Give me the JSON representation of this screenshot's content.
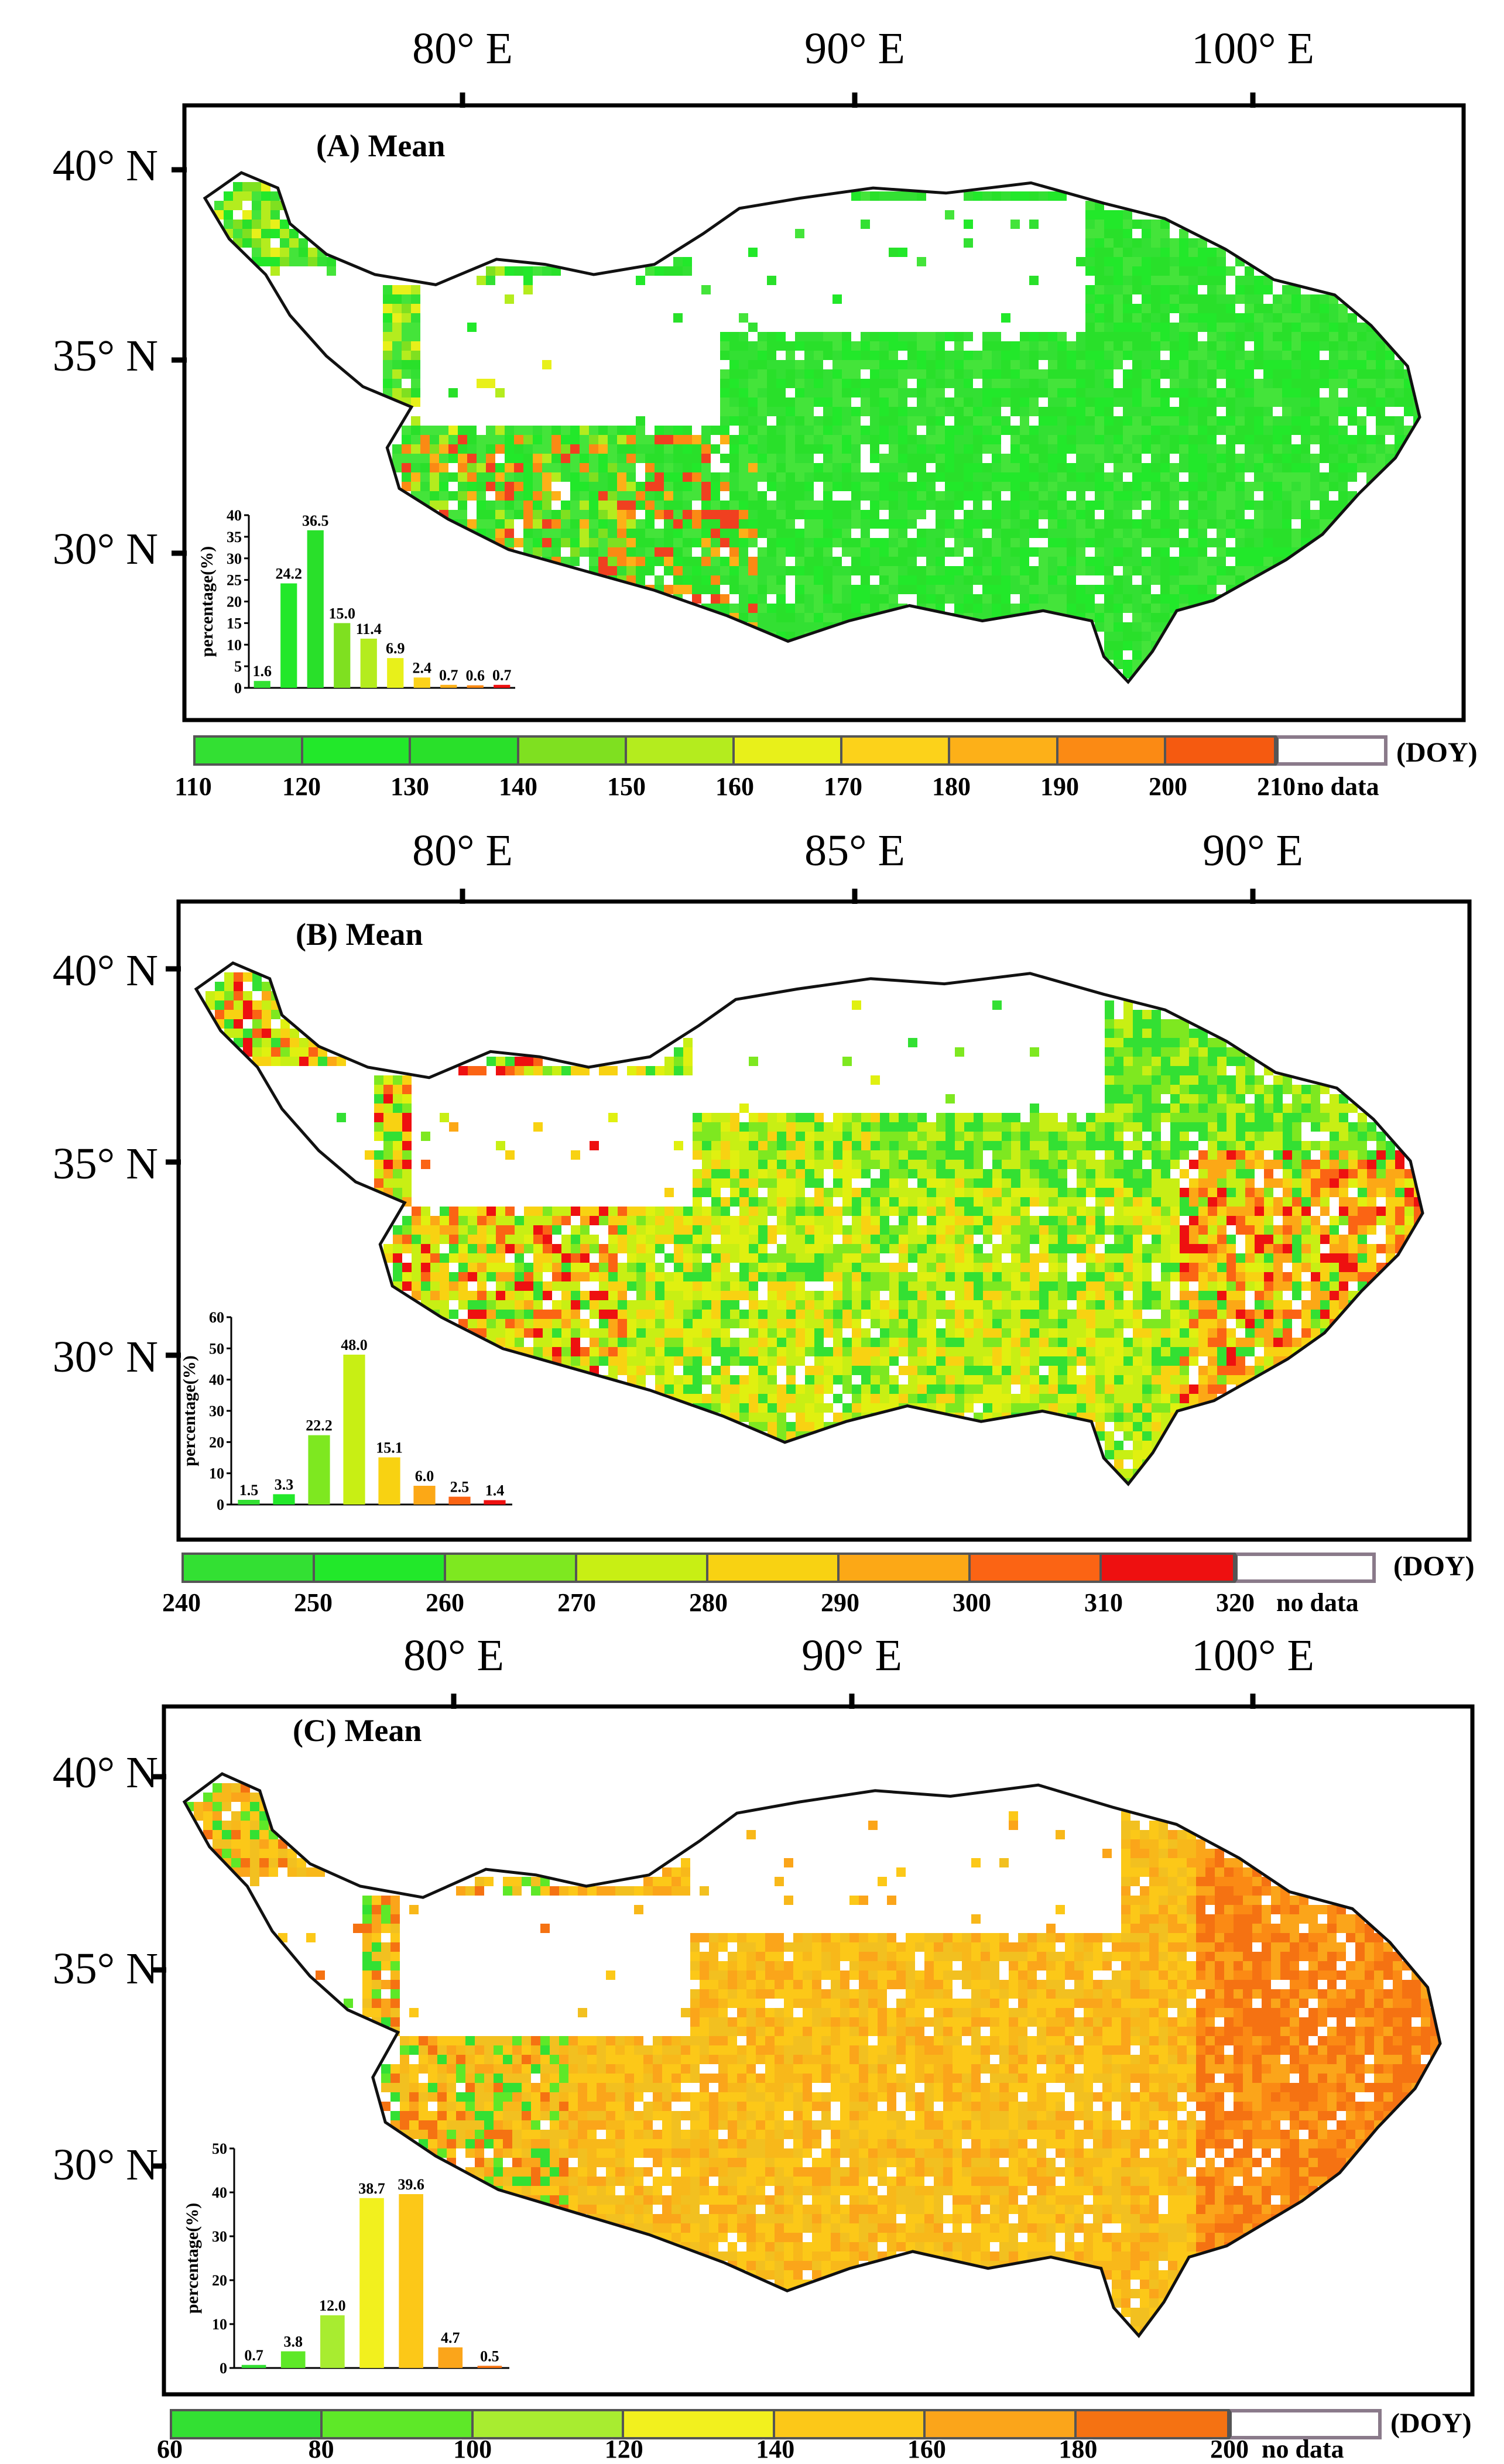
{
  "colors": {
    "frame": "#000000",
    "nodata_border": "#8a7a8a"
  },
  "panels": [
    {
      "id": "A",
      "title": "(A)   Mean",
      "lon_labels": [
        "80° E",
        "90° E",
        "100° E"
      ],
      "lat_labels": [
        "40° N",
        "35° N",
        "30° N"
      ],
      "colorbar": {
        "colors": [
          "#33e033",
          "#22e82a",
          "#29e02a",
          "#7fe020",
          "#b4ec1e",
          "#e8f01a",
          "#fcd21a",
          "#fdb018",
          "#fb8a14",
          "#f55a10",
          "#ee1010"
        ],
        "ticks": [
          "110",
          "120",
          "130",
          "140",
          "150",
          "160",
          "170",
          "180",
          "190",
          "200",
          "210"
        ],
        "nodata": "no data",
        "unit": "(DOY)"
      },
      "map_scheme": "A",
      "histogram": {
        "ylabel": "percentage(%)",
        "yticks": [
          "0",
          "5",
          "10",
          "15",
          "20",
          "25",
          "30",
          "35",
          "40"
        ],
        "ymax": 40,
        "values": [
          1.6,
          24.2,
          36.5,
          15.0,
          11.4,
          6.9,
          2.4,
          0.7,
          0.6,
          0.7
        ],
        "labels": [
          "1.6",
          "24.2",
          "36.5",
          "15.0",
          "11.4",
          "6.9",
          "2.4",
          "0.7",
          "0.6",
          "0.7"
        ],
        "colors": [
          "#33e033",
          "#22e82a",
          "#29e02a",
          "#7fe020",
          "#b4ec1e",
          "#e8f01a",
          "#fcd21a",
          "#fdb018",
          "#fb8a14",
          "#ee1010"
        ]
      }
    },
    {
      "id": "B",
      "title": "(B)   Mean",
      "lon_labels": [
        "80° E",
        "85° E",
        "90° E"
      ],
      "lat_labels": [
        "40° N",
        "35° N",
        "30° N"
      ],
      "colorbar": {
        "colors": [
          "#33e033",
          "#22e82a",
          "#7ee820",
          "#c8ef14",
          "#f8d212",
          "#fca816",
          "#fb6414",
          "#ee1010"
        ],
        "ticks": [
          "240",
          "250",
          "260",
          "270",
          "280",
          "290",
          "300",
          "310",
          "320"
        ],
        "nodata": "no data",
        "unit": "(DOY)"
      },
      "map_scheme": "B",
      "histogram": {
        "ylabel": "percentage(%)",
        "yticks": [
          "0",
          "10",
          "20",
          "30",
          "40",
          "50",
          "60"
        ],
        "ymax": 60,
        "values": [
          1.5,
          3.3,
          22.2,
          48.0,
          15.1,
          6.0,
          2.5,
          1.4
        ],
        "labels": [
          "1.5",
          "3.3",
          "22.2",
          "48.0",
          "15.1",
          "6.0",
          "2.5",
          "1.4"
        ],
        "colors": [
          "#33e033",
          "#22e82a",
          "#7ee820",
          "#c8ef14",
          "#f8d212",
          "#fca816",
          "#fb6414",
          "#ee1010"
        ]
      }
    },
    {
      "id": "C",
      "title": "(C) Mean",
      "lon_labels": [
        "80° E",
        "90° E",
        "100° E"
      ],
      "lat_labels": [
        "40° N",
        "35° N",
        "30° N"
      ],
      "colorbar": {
        "colors": [
          "#33e033",
          "#5ee828",
          "#a8ec30",
          "#f2f01e",
          "#fcc818",
          "#fba51a",
          "#f57212"
        ],
        "ticks": [
          "60",
          "80",
          "100",
          "120",
          "140",
          "160",
          "180",
          "200"
        ],
        "nodata": "no data",
        "unit": "(DOY)"
      },
      "map_scheme": "C",
      "histogram": {
        "ylabel": "percentage(%)",
        "yticks": [
          "0",
          "10",
          "20",
          "30",
          "40",
          "50"
        ],
        "ymax": 50,
        "values": [
          0.7,
          3.8,
          12.0,
          38.7,
          39.6,
          4.7,
          0.5
        ],
        "labels": [
          "0.7",
          "3.8",
          "12.0",
          "38.7",
          "39.6",
          "4.7",
          "0.5"
        ],
        "colors": [
          "#33e033",
          "#5ee828",
          "#a8ec30",
          "#f2f01e",
          "#fcc818",
          "#fba51a",
          "#f57212"
        ]
      }
    }
  ]
}
